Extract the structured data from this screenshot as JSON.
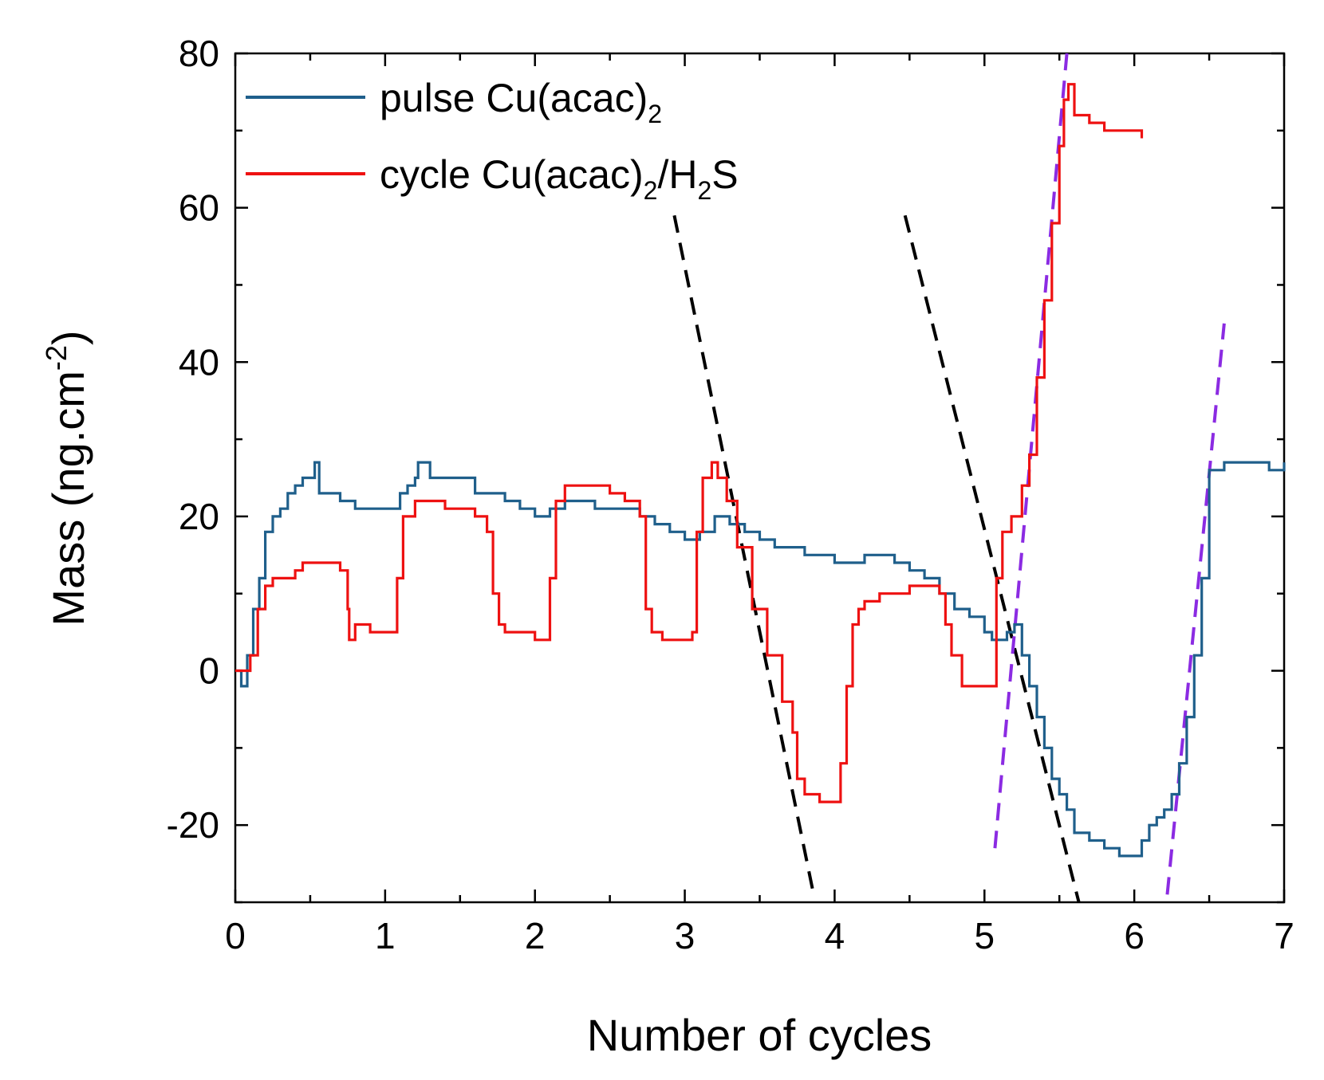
{
  "chart_data": {
    "type": "line",
    "title": "",
    "xlabel": "Number of cycles",
    "ylabel": {
      "text": "Mass (ng.cm",
      "sup": "-2",
      "end": ")"
    },
    "xlim": [
      0,
      7
    ],
    "ylim": [
      -30,
      80
    ],
    "xticks": [
      "0",
      "1",
      "2",
      "3",
      "4",
      "5",
      "6",
      "7"
    ],
    "yticks": [
      "-20",
      "0",
      "20",
      "40",
      "60",
      "80"
    ],
    "grid": false,
    "legend_position": "top-left",
    "series": [
      {
        "name": {
          "main": "pulse Cu(acac)",
          "sub": "2"
        },
        "color": "#1f5f8b",
        "x": [
          0,
          0.04,
          0.08,
          0.12,
          0.16,
          0.2,
          0.25,
          0.3,
          0.35,
          0.4,
          0.45,
          0.5,
          0.53,
          0.56,
          0.65,
          0.7,
          0.75,
          0.8,
          0.9,
          1.0,
          1.1,
          1.15,
          1.2,
          1.22,
          1.3,
          1.4,
          1.5,
          1.6,
          1.7,
          1.8,
          1.9,
          2.0,
          2.1,
          2.2,
          2.3,
          2.4,
          2.5,
          2.6,
          2.7,
          2.8,
          2.9,
          3.0,
          3.1,
          3.2,
          3.3,
          3.4,
          3.5,
          3.6,
          3.7,
          3.8,
          3.9,
          4.0,
          4.1,
          4.2,
          4.3,
          4.4,
          4.5,
          4.6,
          4.7,
          4.8,
          4.9,
          5.0,
          5.05,
          5.1,
          5.15,
          5.2,
          5.25,
          5.3,
          5.35,
          5.4,
          5.45,
          5.5,
          5.55,
          5.6,
          5.7,
          5.8,
          5.9,
          6.0,
          6.05,
          6.1,
          6.15,
          6.2,
          6.25,
          6.3,
          6.35,
          6.4,
          6.45,
          6.5,
          6.6,
          6.7,
          6.8,
          6.9,
          7.0
        ],
        "y": [
          0,
          -2,
          2,
          8,
          12,
          18,
          20,
          21,
          23,
          24,
          25,
          25,
          27,
          23,
          23,
          22,
          22,
          21,
          21,
          21,
          23,
          24,
          25,
          27,
          25,
          25,
          25,
          23,
          23,
          22,
          21,
          20,
          21,
          22,
          22,
          21,
          21,
          21,
          20,
          19,
          18,
          17,
          18,
          20,
          19,
          18,
          17,
          16,
          16,
          15,
          15,
          14,
          14,
          15,
          15,
          14,
          13,
          12,
          10,
          8,
          7,
          5,
          4,
          4,
          5,
          6,
          2,
          -2,
          -6,
          -10,
          -14,
          -16,
          -18,
          -21,
          -22,
          -23,
          -24,
          -24,
          -22,
          -20,
          -19,
          -18,
          -16,
          -12,
          -6,
          2,
          12,
          26,
          27,
          27,
          27,
          26,
          27
        ]
      },
      {
        "name": {
          "main": "cycle Cu(acac)",
          "sub": "2",
          "end": "/H",
          "sub2": "2",
          "end2": "S"
        },
        "color": "#ee1111",
        "x": [
          0,
          0.05,
          0.1,
          0.15,
          0.2,
          0.25,
          0.3,
          0.35,
          0.4,
          0.45,
          0.5,
          0.55,
          0.6,
          0.7,
          0.75,
          0.76,
          0.8,
          0.9,
          1.0,
          1.05,
          1.08,
          1.12,
          1.2,
          1.3,
          1.4,
          1.5,
          1.6,
          1.68,
          1.72,
          1.76,
          1.8,
          1.9,
          2.0,
          2.06,
          2.1,
          2.14,
          2.2,
          2.3,
          2.4,
          2.5,
          2.6,
          2.7,
          2.74,
          2.78,
          2.85,
          2.95,
          3.05,
          3.08,
          3.12,
          3.18,
          3.22,
          3.28,
          3.35,
          3.45,
          3.55,
          3.65,
          3.72,
          3.75,
          3.8,
          3.9,
          4.0,
          4.04,
          4.08,
          4.12,
          4.16,
          4.2,
          4.3,
          4.4,
          4.5,
          4.6,
          4.7,
          4.74,
          4.78,
          4.85,
          4.95,
          5.05,
          5.08,
          5.12,
          5.18,
          5.25,
          5.3,
          5.35,
          5.4,
          5.45,
          5.5,
          5.53,
          5.56,
          5.6,
          5.7,
          5.8,
          5.9,
          6.0,
          6.05
        ],
        "y": [
          0,
          0,
          2,
          8,
          11,
          12,
          12,
          12,
          13,
          14,
          14,
          14,
          14,
          13,
          8,
          4,
          6,
          5,
          5,
          5,
          12,
          20,
          22,
          22,
          21,
          21,
          20,
          18,
          10,
          6,
          5,
          5,
          4,
          4,
          12,
          22,
          24,
          24,
          24,
          23,
          22,
          20,
          8,
          5,
          4,
          4,
          5,
          18,
          25,
          27,
          25,
          22,
          16,
          8,
          2,
          -4,
          -8,
          -14,
          -16,
          -17,
          -17,
          -12,
          -2,
          6,
          8,
          9,
          10,
          10,
          11,
          11,
          10,
          6,
          2,
          -2,
          -2,
          -2,
          12,
          18,
          20,
          24,
          28,
          38,
          48,
          58,
          68,
          74,
          76,
          72,
          71,
          70,
          70,
          70,
          69
        ]
      }
    ],
    "guide_lines": [
      {
        "style": "dashed",
        "color": "#000000",
        "x": [
          2.93,
          3.86
        ],
        "y": [
          59,
          -29
        ]
      },
      {
        "style": "dashed",
        "color": "#000000",
        "x": [
          4.47,
          5.63
        ],
        "y": [
          59,
          -30
        ]
      },
      {
        "style": "dashed",
        "color": "#8b2be2",
        "x": [
          5.07,
          5.55
        ],
        "y": [
          -23,
          80
        ]
      },
      {
        "style": "dashed",
        "color": "#8b2be2",
        "x": [
          6.22,
          6.6
        ],
        "y": [
          -29,
          45
        ]
      }
    ]
  }
}
